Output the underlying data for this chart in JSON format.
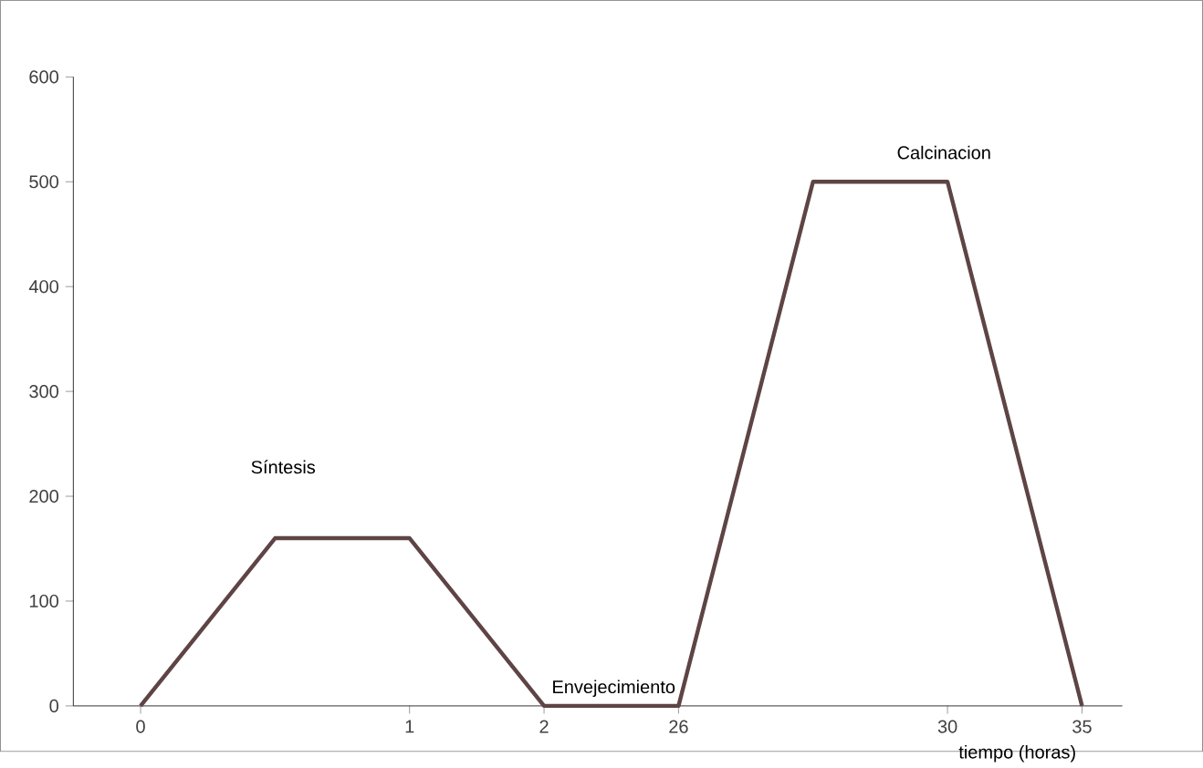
{
  "chart_data": {
    "type": "line",
    "xlabel": "tiempo (horas)",
    "categories": [
      "0",
      null,
      "1",
      "2",
      "26",
      null,
      "30",
      "35"
    ],
    "values": [
      0,
      160,
      160,
      0,
      0,
      500,
      500,
      0
    ],
    "color": "#5e4444",
    "ylim": [
      0,
      600
    ],
    "yticks": [
      0,
      100,
      200,
      300,
      400,
      500,
      600
    ],
    "grid": false,
    "marker": "none",
    "line_style": "solid",
    "annotations": [
      "Síntesis",
      "Envejecimiento",
      "Calcinacion"
    ]
  }
}
